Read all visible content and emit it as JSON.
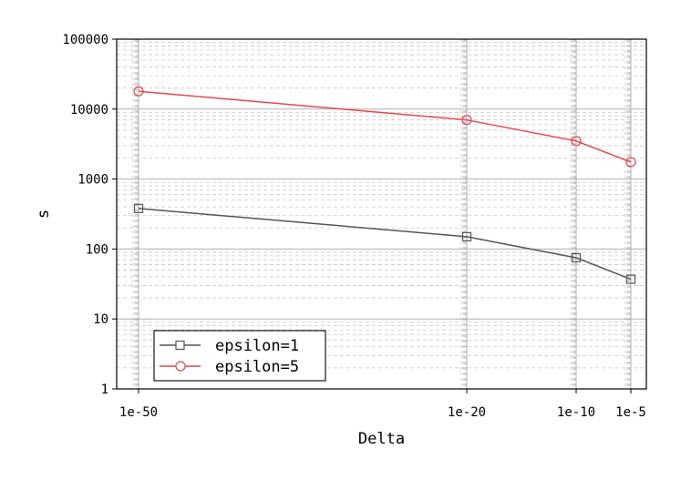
{
  "chart_data": {
    "type": "line",
    "xlabel": "Delta",
    "ylabel": "s",
    "x_scale": "log",
    "y_scale": "log",
    "x_ticks": [
      {
        "value": 1e-50,
        "label": "1e-50"
      },
      {
        "value": 1e-20,
        "label": "1e-20"
      },
      {
        "value": 1e-10,
        "label": "1e-10"
      },
      {
        "value": 1e-05,
        "label": "1e-5"
      }
    ],
    "y_ticks": [
      {
        "value": 1,
        "label": "1"
      },
      {
        "value": 10,
        "label": "10"
      },
      {
        "value": 100,
        "label": "100"
      },
      {
        "value": 1000,
        "label": "1000"
      },
      {
        "value": 10000,
        "label": "10000"
      },
      {
        "value": 100000,
        "label": "100000"
      }
    ],
    "ylim": [
      1,
      100000
    ],
    "grid": true,
    "legend_position": "lower-left",
    "series": [
      {
        "name": "epsilon=1",
        "color": "#555555",
        "marker": "square",
        "points": [
          {
            "x": 1e-50,
            "y": 380
          },
          {
            "x": 1e-20,
            "y": 150
          },
          {
            "x": 1e-10,
            "y": 75
          },
          {
            "x": 1e-05,
            "y": 37
          }
        ]
      },
      {
        "name": "epsilon=5",
        "color": "#e8474c",
        "marker": "circle",
        "points": [
          {
            "x": 1e-50,
            "y": 18000
          },
          {
            "x": 1e-20,
            "y": 7000
          },
          {
            "x": 1e-10,
            "y": 3500
          },
          {
            "x": 1e-05,
            "y": 1750
          }
        ]
      }
    ]
  }
}
